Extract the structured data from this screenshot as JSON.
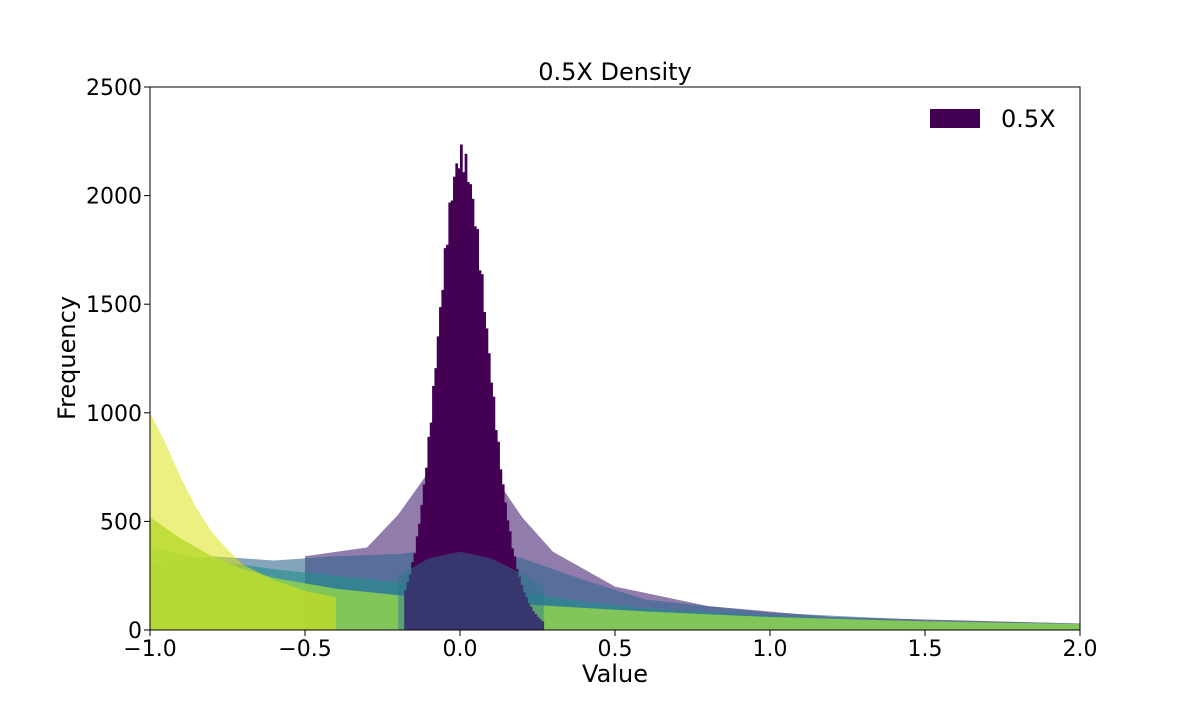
{
  "chart_data": {
    "type": "area",
    "title": "0.5X Density",
    "xlabel": "Value",
    "ylabel": "Frequency",
    "xlim": [
      -1.0,
      2.0
    ],
    "ylim": [
      0,
      2500
    ],
    "x_ticks": [
      "−1.0",
      "−0.5",
      "0.0",
      "0.5",
      "1.0",
      "1.5",
      "2.0"
    ],
    "y_ticks": [
      "0",
      "500",
      "1000",
      "1500",
      "2000",
      "2500"
    ],
    "grid": false,
    "legend": {
      "position": "top-right",
      "entries": [
        {
          "label": "0.5X",
          "color": "#440154"
        }
      ]
    },
    "series": [
      {
        "name": "0.5X",
        "color": "#440154",
        "peak": 2000,
        "center": 0.0,
        "support": [
          -0.18,
          0.27
        ]
      }
    ],
    "layers": [
      {
        "color": "#482475",
        "x": [
          -0.5,
          -0.3,
          -0.2,
          -0.1,
          0.0,
          0.1,
          0.2,
          0.3,
          0.5,
          0.8,
          1.2,
          2.0
        ],
        "values": [
          340,
          380,
          530,
          730,
          760,
          730,
          520,
          360,
          200,
          110,
          60,
          30
        ]
      },
      {
        "color": "#31688e",
        "x": [
          -1.0,
          -0.8,
          -0.6,
          -0.4,
          -0.2,
          0.0,
          0.2,
          0.4,
          0.6,
          1.0,
          1.5,
          2.0
        ],
        "values": [
          300,
          340,
          320,
          340,
          350,
          380,
          330,
          230,
          140,
          80,
          45,
          30
        ]
      },
      {
        "color": "#21908d",
        "x": [
          -1.0,
          -0.8,
          -0.6,
          -0.4,
          -0.2,
          0.0,
          0.2,
          0.4,
          0.6,
          1.0,
          1.5,
          2.0
        ],
        "values": [
          380,
          320,
          280,
          250,
          220,
          200,
          170,
          130,
          100,
          65,
          40,
          28
        ]
      },
      {
        "color": "#8fd14f",
        "x": [
          -1.0,
          -0.9,
          -0.8,
          -0.7,
          -0.6,
          -0.4,
          -0.2,
          0.0,
          0.3,
          0.6,
          1.0,
          1.5,
          2.0
        ],
        "values": [
          520,
          420,
          340,
          280,
          240,
          190,
          160,
          140,
          110,
          85,
          60,
          40,
          28
        ]
      },
      {
        "color": "#dde318",
        "x": [
          -1.0,
          -0.95,
          -0.9,
          -0.85,
          -0.8,
          -0.75,
          -0.7,
          -0.6,
          -0.5,
          -0.4
        ],
        "values": [
          1000,
          860,
          700,
          560,
          450,
          370,
          300,
          230,
          180,
          150
        ]
      }
    ]
  }
}
